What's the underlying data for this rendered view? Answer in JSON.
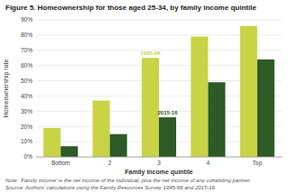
{
  "chart_data": {
    "type": "bar",
    "title": "Figure 5. Homeownership for those aged 25-34, by family income quintile",
    "categories": [
      "Bottom",
      "2",
      "3",
      "4",
      "Top"
    ],
    "series": [
      {
        "name": "1995-96",
        "color": "#c8d445",
        "values": [
          19,
          37,
          65,
          79,
          86
        ]
      },
      {
        "name": "2015-16",
        "color": "#2d5a27",
        "values": [
          7,
          15,
          26,
          49,
          64
        ]
      }
    ],
    "xlabel": "Family income quintile",
    "ylabel": "Homeownership rate",
    "ylim": [
      0,
      90
    ],
    "yticks": [
      {
        "value": 0,
        "label": "0%"
      },
      {
        "value": 10,
        "label": "10%"
      },
      {
        "value": 20,
        "label": "20%"
      },
      {
        "value": 30,
        "label": "30%"
      },
      {
        "value": 40,
        "label": "40%"
      },
      {
        "value": 50,
        "label": "50%"
      },
      {
        "value": 60,
        "label": "60%"
      },
      {
        "value": 70,
        "label": "70%"
      },
      {
        "value": 80,
        "label": "80%"
      },
      {
        "value": 90,
        "label": "90%"
      }
    ],
    "grid": true,
    "note": "Note: ‘Family income’ is the net income of the individual, plus the net income of any cohabiting partner.",
    "source": "Source: Authors’ calculations using the Family Resources Survey 1995-96 and 2015-16."
  }
}
